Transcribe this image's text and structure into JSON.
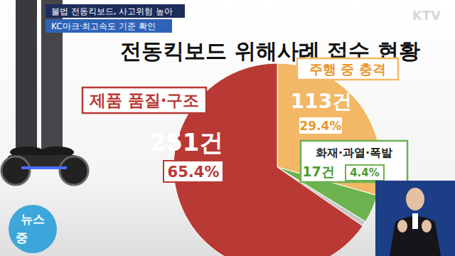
{
  "chart_data": {
    "type": "pie",
    "title": "전동킥보드 위해사례 접수 현황",
    "categories": [
      "주행 중 충격",
      "화재·과열·폭발",
      null,
      "제품 품질·구조"
    ],
    "values": [
      29.4,
      4.4,
      0.8,
      65.4
    ],
    "value_labels": [
      "29.4%",
      "4.4%",
      null,
      "65.4%"
    ],
    "counts": [
      113,
      17,
      null,
      251
    ],
    "count_labels": [
      "113건",
      "17건",
      null,
      "251건"
    ],
    "colors": [
      "#f2b866",
      "#6cb24f",
      "#c8c8c8",
      "#b93a34"
    ],
    "data_labels": true
  },
  "broadcast": {
    "captions": [
      "불법 전동킥보드, 사고위험 높아",
      "KC마크·최고속도 기준 확인"
    ],
    "channel": "KTV",
    "program": [
      "뉴스",
      "중"
    ]
  }
}
